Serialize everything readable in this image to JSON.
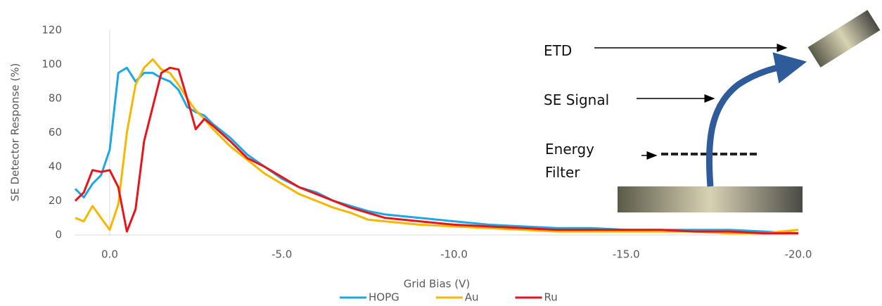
{
  "chart_data": {
    "type": "line",
    "x_label": "Grid Bias (V)",
    "y_label": "SE Detector Response (%)",
    "x": [
      1.0,
      0.75,
      0.5,
      0.25,
      0,
      -0.25,
      -0.5,
      -0.75,
      -1.0,
      -1.25,
      -1.5,
      -1.75,
      -2.0,
      -2.25,
      -2.5,
      -2.75,
      -3.0,
      -3.5,
      -4,
      -4.5,
      -5,
      -5.5,
      -6,
      -6.5,
      -7,
      -7.5,
      -8,
      -9,
      -10,
      -11,
      -12,
      -13,
      -14,
      -15,
      -16,
      -17,
      -18,
      -19,
      -20
    ],
    "series": [
      {
        "name": "HOPG",
        "color": "#1ea7e1",
        "values": [
          27,
          22,
          30,
          35,
          50,
          95,
          98,
          90,
          95,
          95,
          92,
          90,
          85,
          75,
          72,
          70,
          65,
          57,
          47,
          40,
          33,
          28,
          25,
          20,
          17,
          14,
          12,
          10,
          8,
          6,
          5,
          4,
          4,
          3,
          3,
          3,
          3,
          2,
          1
        ]
      },
      {
        "name": "Au",
        "color": "#f5b800",
        "values": [
          10,
          8,
          17,
          10,
          3,
          18,
          60,
          88,
          98,
          103,
          97,
          95,
          88,
          80,
          73,
          68,
          62,
          52,
          44,
          36,
          30,
          24,
          20,
          16,
          13,
          9,
          8,
          6,
          5,
          4,
          3,
          2,
          2,
          2,
          2,
          2,
          1,
          1,
          3
        ]
      },
      {
        "name": "Ru",
        "color": "#e8141c",
        "values": [
          20,
          25,
          38,
          37,
          38,
          28,
          2,
          15,
          55,
          75,
          95,
          98,
          97,
          80,
          62,
          68,
          64,
          55,
          45,
          40,
          34,
          28,
          24,
          20,
          16,
          13,
          10,
          8,
          6,
          5,
          4,
          3,
          3,
          3,
          3,
          2,
          2,
          1,
          1
        ]
      }
    ],
    "xlim": [
      1,
      -20
    ],
    "xticks": [
      {
        "value": 0,
        "label": "0.0"
      },
      {
        "value": -5,
        "label": "-5.0"
      },
      {
        "value": -10,
        "label": "-10.0"
      },
      {
        "value": -15,
        "label": "-15.0"
      },
      {
        "value": -20,
        "label": "-20.0"
      }
    ],
    "ylim": [
      0,
      120
    ],
    "yticks": [
      0,
      20,
      40,
      60,
      80,
      100,
      120
    ],
    "grid": false,
    "legend": "bottom",
    "annotations": [
      "ETD",
      "SE Signal",
      "Energy Filter"
    ]
  }
}
